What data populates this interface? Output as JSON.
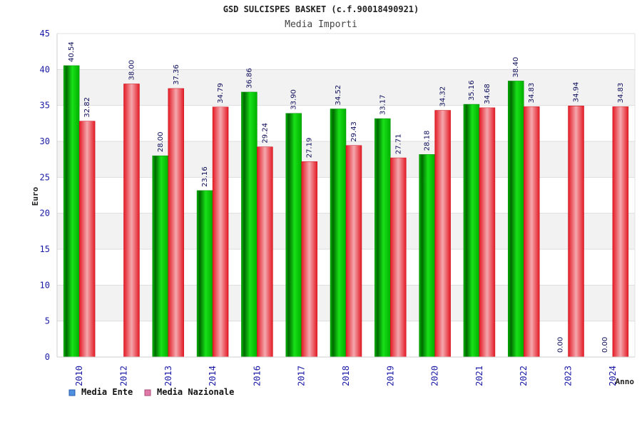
{
  "chart_data": {
    "type": "bar",
    "title": "GSD SULCISPES BASKET (c.f.90018490921)",
    "subtitle": "Media Importi",
    "xlabel": "Anno",
    "ylabel": "Euro",
    "ylim": [
      0,
      45
    ],
    "yticks": [
      0,
      5,
      10,
      15,
      20,
      25,
      30,
      35,
      40,
      45
    ],
    "grid": true,
    "legend_position": "bottom-left",
    "categories": [
      "2010",
      "2012",
      "2013",
      "2014",
      "2016",
      "2017",
      "2018",
      "2019",
      "2020",
      "2021",
      "2022",
      "2023",
      "2024"
    ],
    "series": [
      {
        "name": "Media Ente",
        "color": "#00c000",
        "legend_color": "#4e8fe0",
        "values": [
          40.54,
          null,
          28.0,
          23.16,
          36.86,
          33.9,
          34.52,
          33.17,
          28.18,
          35.16,
          38.4,
          0.0,
          0.0
        ],
        "labels": [
          "40.54",
          "",
          "28.00",
          "23.16",
          "36.86",
          "33.90",
          "34.52",
          "33.17",
          "28.18",
          "35.16",
          "38.40",
          "0.00",
          "0.00"
        ]
      },
      {
        "name": "Media Nazionale",
        "color": "#e8202a",
        "legend_color": "#e079a8",
        "values": [
          32.82,
          38.0,
          37.36,
          34.79,
          29.24,
          27.19,
          29.43,
          27.71,
          34.32,
          34.68,
          34.83,
          34.94,
          34.83
        ],
        "labels": [
          "32.82",
          "38.00",
          "37.36",
          "34.79",
          "29.24",
          "27.19",
          "29.43",
          "27.71",
          "34.32",
          "34.68",
          "34.83",
          "34.94",
          "34.83"
        ]
      }
    ]
  }
}
